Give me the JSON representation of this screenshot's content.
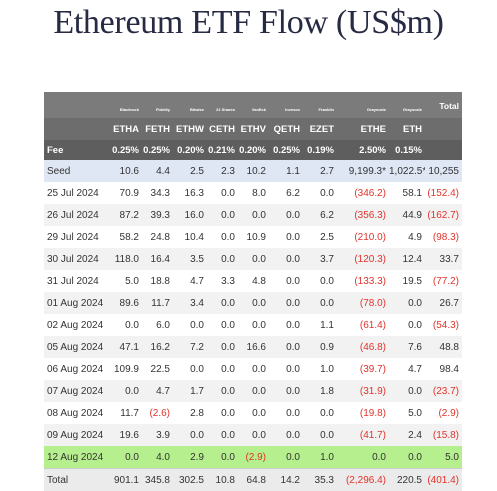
{
  "page": {
    "title": "Ethereum ETF Flow (US$m)"
  },
  "chart_data": {
    "type": "table",
    "title": "Ethereum ETF Flow (US$m)",
    "issuers": [
      "Blackrock",
      "Fidelity",
      "Bitwise",
      "21 Shares",
      "VanEck",
      "Invesco",
      "Franklin",
      "Grayscale",
      "Grayscale",
      "Total"
    ],
    "tickers": [
      "ETHA",
      "FETH",
      "ETHW",
      "CETH",
      "ETHV",
      "QETH",
      "EZET",
      "ETHE",
      "ETH",
      ""
    ],
    "fee_label": "Fee",
    "fees": [
      "0.25%",
      "0.25%",
      "0.20%",
      "0.21%",
      "0.20%",
      "0.25%",
      "0.19%",
      "2.50%",
      "0.15%",
      ""
    ],
    "rows": [
      {
        "label": "Seed",
        "values": [
          "10.6",
          "4.4",
          "2.5",
          "2.3",
          "10.2",
          "1.1",
          "2.7",
          "9,199.3*",
          "1,022.5*",
          "10,255"
        ]
      },
      {
        "label": "25 Jul 2024",
        "values": [
          "70.9",
          "34.3",
          "16.3",
          "0.0",
          "8.0",
          "6.2",
          "0.0",
          "(346.2)",
          "58.1",
          "(152.4)"
        ]
      },
      {
        "label": "26 Jul 2024",
        "values": [
          "87.2",
          "39.3",
          "16.0",
          "0.0",
          "0.0",
          "0.0",
          "6.2",
          "(356.3)",
          "44.9",
          "(162.7)"
        ]
      },
      {
        "label": "29 Jul 2024",
        "values": [
          "58.2",
          "24.8",
          "10.4",
          "0.0",
          "10.9",
          "0.0",
          "2.5",
          "(210.0)",
          "4.9",
          "(98.3)"
        ]
      },
      {
        "label": "30 Jul 2024",
        "values": [
          "118.0",
          "16.4",
          "3.5",
          "0.0",
          "0.0",
          "0.0",
          "3.7",
          "(120.3)",
          "12.4",
          "33.7"
        ]
      },
      {
        "label": "31 Jul 2024",
        "values": [
          "5.0",
          "18.8",
          "4.7",
          "3.3",
          "4.8",
          "0.0",
          "0.0",
          "(133.3)",
          "19.5",
          "(77.2)"
        ]
      },
      {
        "label": "01 Aug 2024",
        "values": [
          "89.6",
          "11.7",
          "3.4",
          "0.0",
          "0.0",
          "0.0",
          "0.0",
          "(78.0)",
          "0.0",
          "26.7"
        ]
      },
      {
        "label": "02 Aug 2024",
        "values": [
          "0.0",
          "6.0",
          "0.0",
          "0.0",
          "0.0",
          "0.0",
          "1.1",
          "(61.4)",
          "0.0",
          "(54.3)"
        ]
      },
      {
        "label": "05 Aug 2024",
        "values": [
          "47.1",
          "16.2",
          "7.2",
          "0.0",
          "16.6",
          "0.0",
          "0.9",
          "(46.8)",
          "7.6",
          "48.8"
        ]
      },
      {
        "label": "06 Aug 2024",
        "values": [
          "109.9",
          "22.5",
          "0.0",
          "0.0",
          "0.0",
          "0.0",
          "1.0",
          "(39.7)",
          "4.7",
          "98.4"
        ]
      },
      {
        "label": "07 Aug 2024",
        "values": [
          "0.0",
          "4.7",
          "1.7",
          "0.0",
          "0.0",
          "0.0",
          "1.8",
          "(31.9)",
          "0.0",
          "(23.7)"
        ]
      },
      {
        "label": "08 Aug 2024",
        "values": [
          "11.7",
          "(2.6)",
          "2.8",
          "0.0",
          "0.0",
          "0.0",
          "0.0",
          "(19.8)",
          "5.0",
          "(2.9)"
        ]
      },
      {
        "label": "09 Aug 2024",
        "values": [
          "19.6",
          "3.9",
          "0.0",
          "0.0",
          "0.0",
          "0.0",
          "0.0",
          "(41.7)",
          "2.4",
          "(15.8)"
        ]
      },
      {
        "label": "12 Aug 2024",
        "values": [
          "0.0",
          "4.0",
          "2.9",
          "0.0",
          "(2.9)",
          "0.0",
          "1.0",
          "0.0",
          "0.0",
          "5.0"
        ]
      },
      {
        "label": "Total",
        "values": [
          "901.1",
          "345.8",
          "302.5",
          "10.8",
          "64.8",
          "14.2",
          "35.3",
          "(2,296.4)",
          "220.5",
          "(401.4)"
        ]
      }
    ],
    "colors": {
      "header_bg": "#6d6d6d",
      "negative": "#e0332b",
      "highlight_row": "#b6ef8e",
      "seed_row": "#dfe6f4"
    }
  }
}
